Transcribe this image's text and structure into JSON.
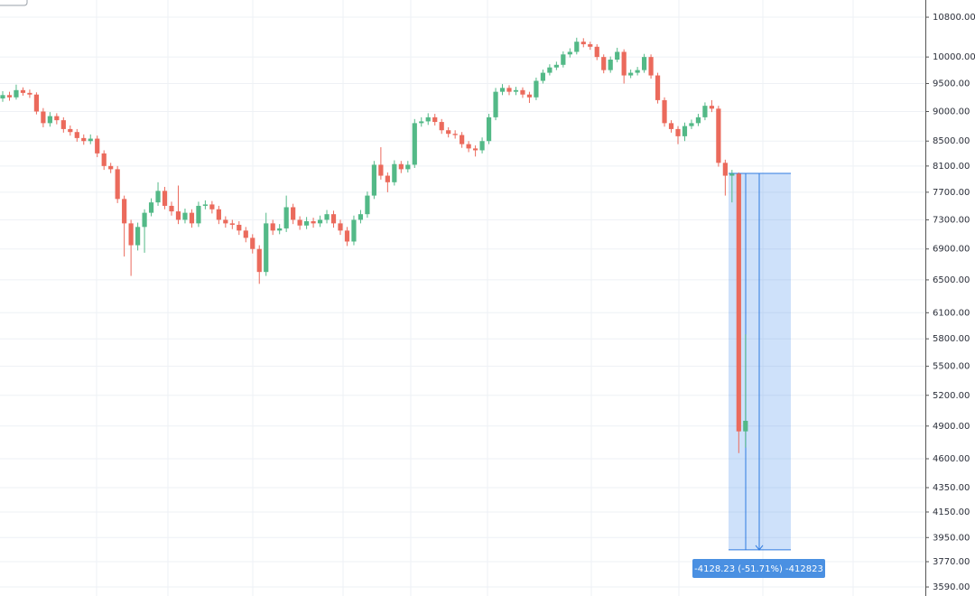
{
  "chart_data": {
    "type": "candlestick",
    "log_scale": true,
    "grid": true,
    "up_color": "#53b987",
    "down_color": "#eb6a5c",
    "ylim": [
      3528,
      11165
    ],
    "yticks": [
      {
        "value": 10800,
        "label": "10800.00"
      },
      {
        "value": 10000,
        "label": "10000.00"
      },
      {
        "value": 9500,
        "label": "9500.00"
      },
      {
        "value": 9000,
        "label": "9000.00"
      },
      {
        "value": 8500,
        "label": "8500.00"
      },
      {
        "value": 8100,
        "label": "8100.00"
      },
      {
        "value": 7700,
        "label": "7700.00"
      },
      {
        "value": 7300,
        "label": "7300.00"
      },
      {
        "value": 6900,
        "label": "6900.00"
      },
      {
        "value": 6500,
        "label": "6500.00"
      },
      {
        "value": 6100,
        "label": "6100.00"
      },
      {
        "value": 5800,
        "label": "5800.00"
      },
      {
        "value": 5500,
        "label": "5500.00"
      },
      {
        "value": 5200,
        "label": "5200.00"
      },
      {
        "value": 4900,
        "label": "4900.00"
      },
      {
        "value": 4600,
        "label": "4600.00"
      },
      {
        "value": 4350,
        "label": "4350.00"
      },
      {
        "value": 4150,
        "label": "4150.00"
      },
      {
        "value": 3950,
        "label": "3950.00"
      },
      {
        "value": 3770,
        "label": "3770.00"
      },
      {
        "value": 3590,
        "label": "3590.00"
      }
    ],
    "open": [
      9230,
      9290,
      9250,
      9380,
      9330,
      9300,
      9000,
      8800,
      8920,
      8850,
      8700,
      8650,
      8550,
      8500,
      8540,
      8300,
      8100,
      8050,
      7600,
      7250,
      6950,
      7200,
      7400,
      7550,
      7720,
      7500,
      7420,
      7300,
      7400,
      7250,
      7500,
      7520,
      7450,
      7300,
      7250,
      7230,
      7150,
      7050,
      6900,
      6600,
      7250,
      7150,
      7180,
      7480,
      7300,
      7220,
      7280,
      7250,
      7300,
      7380,
      7250,
      7150,
      7000,
      7300,
      7380,
      7650,
      8120,
      7950,
      7850,
      8130,
      8050,
      8120,
      8800,
      8830,
      8900,
      8820,
      8680,
      8620,
      8600,
      8450,
      8380,
      8350,
      8500,
      8900,
      9350,
      9420,
      9350,
      9380,
      9300,
      9250,
      9550,
      9700,
      9800,
      9850,
      10050,
      10100,
      10300,
      10250,
      10200,
      10000,
      9750,
      9950,
      10100,
      9650,
      9700,
      9750,
      10000,
      9650,
      9200,
      8800,
      8700,
      8580,
      8750,
      8800,
      8900,
      9100,
      9050,
      8150,
      7950,
      7980,
      4850
    ],
    "high": [
      9360,
      9350,
      9480,
      9430,
      9390,
      9340,
      9060,
      8990,
      8970,
      8900,
      8760,
      8700,
      8610,
      8610,
      8590,
      8350,
      8150,
      8100,
      7650,
      7300,
      7260,
      7450,
      7610,
      7850,
      7780,
      7560,
      7800,
      7460,
      7450,
      7560,
      7580,
      7570,
      7500,
      7350,
      7300,
      7280,
      7200,
      7100,
      6950,
      7400,
      7300,
      7240,
      7650,
      7530,
      7350,
      7340,
      7330,
      7360,
      7440,
      7430,
      7300,
      7200,
      7360,
      7440,
      7710,
      8180,
      8400,
      8000,
      8190,
      8180,
      8180,
      8870,
      8900,
      8970,
      8960,
      8870,
      8730,
      8680,
      8650,
      8500,
      8430,
      8560,
      8960,
      9420,
      9490,
      9470,
      9440,
      9430,
      9350,
      9610,
      9760,
      9860,
      9910,
      10110,
      10170,
      10380,
      10370,
      10300,
      10250,
      10050,
      10010,
      10180,
      10150,
      9760,
      9810,
      10060,
      10050,
      9700,
      9250,
      8850,
      8750,
      8810,
      8860,
      8960,
      9160,
      9200,
      9100,
      8200,
      8040,
      8000,
      5850
    ],
    "low": [
      9170,
      9190,
      9210,
      9280,
      9240,
      8950,
      8730,
      8740,
      8780,
      8640,
      8590,
      8490,
      8440,
      8450,
      8240,
      8040,
      7990,
      7540,
      6800,
      6550,
      6880,
      6850,
      7350,
      7500,
      7450,
      7360,
      7240,
      7250,
      7190,
      7200,
      7450,
      7390,
      7240,
      7190,
      7170,
      7090,
      6990,
      6840,
      6450,
      6550,
      7090,
      7100,
      7130,
      7240,
      7160,
      7170,
      7190,
      7200,
      7250,
      7190,
      7090,
      6940,
      6950,
      7250,
      7330,
      7600,
      7890,
      7700,
      7800,
      7990,
      8000,
      8070,
      8740,
      8770,
      8760,
      8620,
      8560,
      8540,
      8390,
      8320,
      8250,
      8300,
      8450,
      8850,
      9290,
      9290,
      9290,
      9240,
      9150,
      9200,
      9500,
      9650,
      9750,
      9800,
      9990,
      10050,
      10190,
      10140,
      9940,
      9690,
      9700,
      9900,
      9500,
      9600,
      9650,
      9700,
      9590,
      9140,
      8740,
      8640,
      8450,
      8500,
      8700,
      8750,
      8850,
      8990,
      8090,
      7650,
      7550,
      4650,
      4700
    ],
    "close": [
      9290,
      9250,
      9380,
      9330,
      9300,
      9000,
      8800,
      8920,
      8850,
      8700,
      8650,
      8550,
      8500,
      8540,
      8300,
      8100,
      8050,
      7600,
      7250,
      6950,
      7200,
      7400,
      7550,
      7720,
      7500,
      7420,
      7300,
      7400,
      7250,
      7500,
      7520,
      7450,
      7300,
      7250,
      7230,
      7150,
      7050,
      6900,
      6600,
      7250,
      7150,
      7180,
      7480,
      7300,
      7220,
      7280,
      7250,
      7300,
      7380,
      7250,
      7150,
      7000,
      7300,
      7380,
      7650,
      8120,
      7950,
      7850,
      8130,
      8050,
      8120,
      8800,
      8830,
      8900,
      8820,
      8680,
      8620,
      8600,
      8450,
      8380,
      8350,
      8500,
      8900,
      9350,
      9420,
      9350,
      9380,
      9300,
      9250,
      9550,
      9700,
      9800,
      9850,
      10050,
      10100,
      10300,
      10250,
      10200,
      10000,
      9750,
      9950,
      10100,
      9650,
      9700,
      9750,
      10000,
      9650,
      9200,
      8800,
      8700,
      8580,
      8750,
      8800,
      8900,
      9100,
      9050,
      8150,
      7950,
      7980,
      4850,
      4950
    ],
    "measure": {
      "from": 7985,
      "to": 3857,
      "label": "-4128.23 (-51.71%) -412823"
    }
  }
}
